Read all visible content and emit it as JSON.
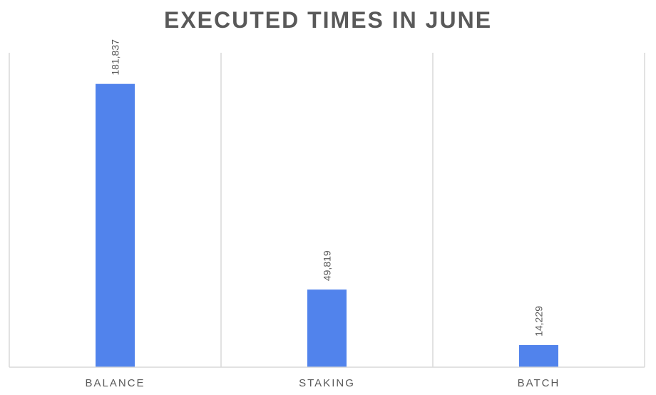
{
  "chart_data": {
    "type": "bar",
    "title": "EXECUTED TIMES IN JUNE",
    "categories": [
      "BALANCE",
      "STAKING",
      "BATCH"
    ],
    "values": [
      181837,
      49819,
      14229
    ],
    "value_labels": [
      "181,837",
      "49,819",
      "14,229"
    ],
    "xlabel": "",
    "ylabel": "",
    "ylim": [
      0,
      200000
    ],
    "grid": false,
    "bar_color": "#5183EC",
    "separator_color": "#D9D9D9"
  }
}
